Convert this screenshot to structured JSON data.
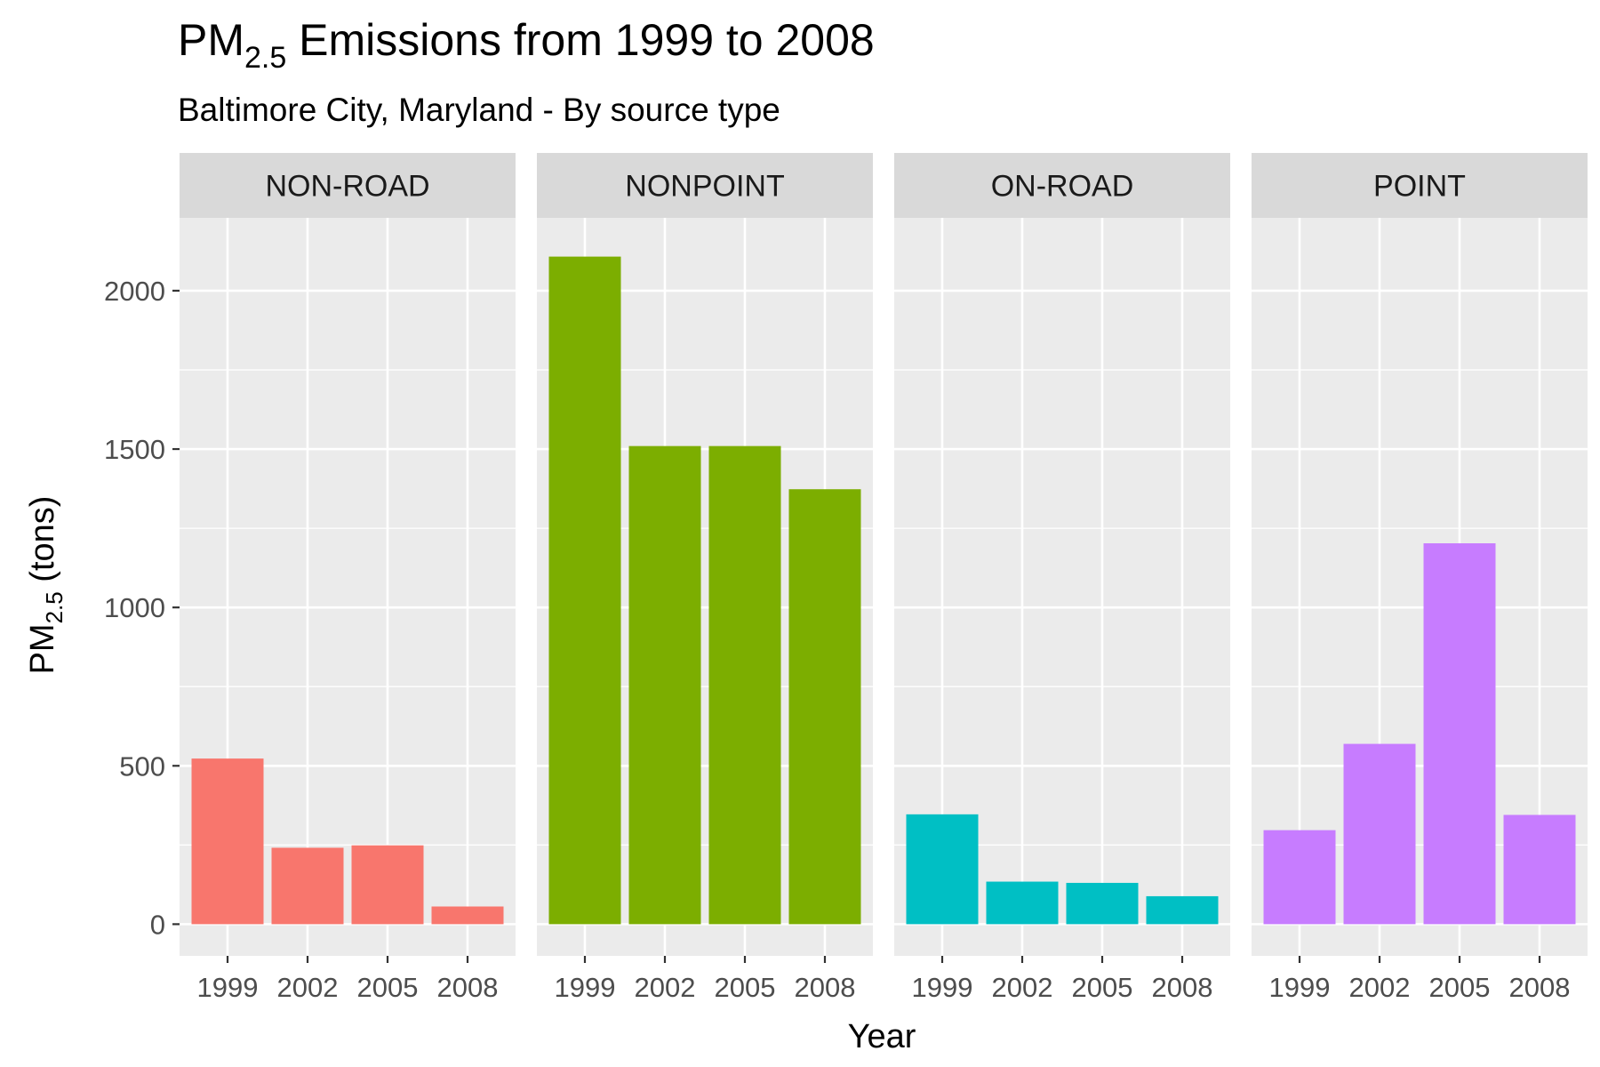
{
  "title": {
    "prefix": "PM",
    "subscript": "2.5",
    "rest": " Emissions from 1999 to 2008"
  },
  "subtitle": "Baltimore City, Maryland - By source type",
  "colors": {
    "panel_bg": "#EBEBEB",
    "grid": "#FFFFFF",
    "strip_bg": "#D9D9D9",
    "NON-ROAD": "#F8766D",
    "NONPOINT": "#7CAE00",
    "ON-ROAD": "#00BFC4",
    "POINT": "#C77CFF"
  },
  "chart_data": {
    "type": "bar",
    "facet_by": "source type",
    "categories": [
      "1999",
      "2002",
      "2005",
      "2008"
    ],
    "xlabel": "Year",
    "ylabel": {
      "prefix": "PM",
      "subscript": "2.5",
      "rest": " (tons)"
    },
    "ylim": [
      -100,
      2230
    ],
    "yticks": [
      0,
      500,
      1000,
      1500,
      2000
    ],
    "grid": true,
    "legend": "none",
    "panels": [
      {
        "name": "NON-ROAD",
        "values": [
          522.9,
          241.3,
          248.9,
          55.8
        ]
      },
      {
        "name": "NONPOINT",
        "values": [
          2107.6,
          1509.5,
          1509.5,
          1373.2
        ]
      },
      {
        "name": "ON-ROAD",
        "values": [
          346.8,
          134.3,
          130.4,
          88.3
        ]
      },
      {
        "name": "POINT",
        "values": [
          296.8,
          569.3,
          1202.5,
          344.98
        ]
      }
    ]
  }
}
